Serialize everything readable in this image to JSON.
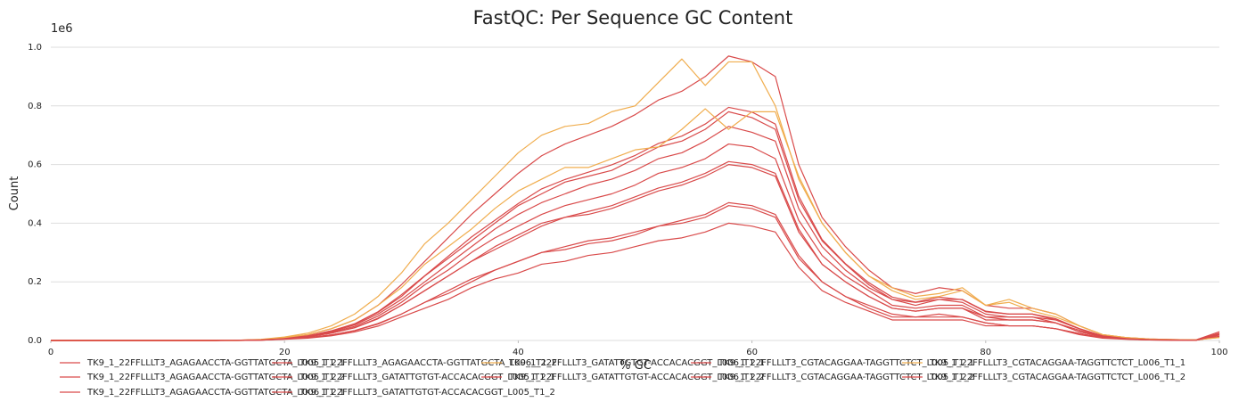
{
  "chart_data": {
    "type": "line",
    "title": "FastQC: Per Sequence GC Content",
    "y_offset_label": "1e6",
    "xlabel": "% GC",
    "ylabel": "Count",
    "xlim": [
      0,
      100
    ],
    "ylim": [
      0,
      1.0
    ],
    "xticks": [
      0,
      20,
      40,
      60,
      80,
      100
    ],
    "yticks": [
      {
        "value": 0,
        "label": "0.0"
      },
      0.2,
      0.4,
      0.6,
      0.8,
      {
        "value": 1,
        "label": "1.0"
      }
    ],
    "grid": true,
    "legend": "bottom",
    "x": [
      0,
      2,
      4,
      6,
      8,
      10,
      12,
      14,
      16,
      18,
      20,
      22,
      24,
      26,
      28,
      30,
      32,
      34,
      36,
      38,
      40,
      42,
      44,
      46,
      48,
      50,
      52,
      54,
      56,
      58,
      60,
      62,
      64,
      66,
      68,
      70,
      72,
      74,
      76,
      78,
      80,
      82,
      84,
      86,
      88,
      90,
      92,
      94,
      96,
      98,
      100
    ],
    "series": [
      {
        "name": "TK9_1_22FFLLLT3_AGAGAACCTA-GGTTATGCTA_L005_T1_1",
        "color": "#d94a4a",
        "values": [
          0,
          0,
          0,
          0,
          0,
          0,
          0,
          0,
          0.001,
          0.002,
          0.008,
          0.016,
          0.033,
          0.057,
          0.098,
          0.156,
          0.221,
          0.287,
          0.353,
          0.41,
          0.467,
          0.517,
          0.549,
          0.574,
          0.599,
          0.631,
          0.672,
          0.697,
          0.738,
          0.795,
          0.779,
          0.738,
          0.492,
          0.344,
          0.262,
          0.197,
          0.148,
          0.131,
          0.148,
          0.139,
          0.098,
          0.09,
          0.09,
          0.074,
          0.041,
          0.016,
          0.008,
          0.004,
          0.002,
          0.002,
          0.025
        ]
      },
      {
        "name": "TK9_1_22FFLLLT3_AGAGAACCTA-GGTTATGCTA_L005_T1_2",
        "color": "#d94a4a",
        "values": [
          0,
          0,
          0,
          0,
          0,
          0,
          0,
          0,
          0.001,
          0.002,
          0.006,
          0.013,
          0.025,
          0.044,
          0.076,
          0.12,
          0.17,
          0.22,
          0.27,
          0.32,
          0.36,
          0.4,
          0.42,
          0.44,
          0.46,
          0.49,
          0.52,
          0.54,
          0.57,
          0.61,
          0.6,
          0.57,
          0.38,
          0.26,
          0.2,
          0.15,
          0.11,
          0.1,
          0.11,
          0.11,
          0.08,
          0.07,
          0.07,
          0.06,
          0.03,
          0.013,
          0.006,
          0.003,
          0.002,
          0.001,
          0.019
        ]
      },
      {
        "name": "TK9_1_22FFLLLT3_AGAGAACCTA-GGTTATGCTA_L006_T1_1",
        "color": "#d94a4a",
        "values": [
          0,
          0,
          0,
          0,
          0,
          0,
          0,
          0,
          0.001,
          0.003,
          0.01,
          0.02,
          0.04,
          0.07,
          0.12,
          0.19,
          0.27,
          0.35,
          0.43,
          0.5,
          0.57,
          0.63,
          0.67,
          0.7,
          0.73,
          0.77,
          0.82,
          0.85,
          0.9,
          0.97,
          0.95,
          0.9,
          0.6,
          0.42,
          0.32,
          0.24,
          0.18,
          0.16,
          0.18,
          0.17,
          0.12,
          0.11,
          0.11,
          0.09,
          0.05,
          0.02,
          0.01,
          0.005,
          0.003,
          0.002,
          0.03
        ]
      },
      {
        "name": "TK9_1_22FFLLLT3_AGAGAACCTA-GGTTATGCTA_L006_T1_2",
        "color": "#d94a4a",
        "values": [
          0,
          0,
          0,
          0,
          0,
          0,
          0,
          0,
          0.001,
          0.002,
          0.008,
          0.015,
          0.03,
          0.053,
          0.09,
          0.14,
          0.2,
          0.26,
          0.32,
          0.38,
          0.43,
          0.47,
          0.5,
          0.53,
          0.55,
          0.58,
          0.62,
          0.64,
          0.68,
          0.73,
          0.71,
          0.68,
          0.45,
          0.32,
          0.24,
          0.18,
          0.14,
          0.12,
          0.14,
          0.13,
          0.09,
          0.08,
          0.08,
          0.07,
          0.04,
          0.015,
          0.008,
          0.004,
          0.002,
          0.002,
          0.023
        ]
      },
      {
        "name": "TK9_1_22FFLLLT3_GATATTGTGT-ACCACACGGT_L005_T1_1",
        "color": "#d94a4a",
        "values": [
          0,
          0,
          0,
          0,
          0,
          0,
          0,
          0,
          0,
          0.001,
          0.005,
          0.01,
          0.019,
          0.034,
          0.058,
          0.09,
          0.13,
          0.17,
          0.21,
          0.24,
          0.27,
          0.3,
          0.32,
          0.34,
          0.35,
          0.37,
          0.39,
          0.41,
          0.43,
          0.47,
          0.46,
          0.43,
          0.29,
          0.2,
          0.15,
          0.12,
          0.09,
          0.08,
          0.09,
          0.08,
          0.06,
          0.05,
          0.05,
          0.04,
          0.024,
          0.01,
          0.005,
          0.002,
          0.001,
          0.001,
          0.014
        ]
      },
      {
        "name": "TK9_1_22FFLLLT3_GATATTGTGT-ACCACACGGT_L005_T1_2",
        "color": "#d94a4a",
        "values": [
          0,
          0,
          0,
          0,
          0,
          0,
          0,
          0,
          0,
          0.001,
          0.004,
          0.008,
          0.016,
          0.029,
          0.049,
          0.08,
          0.11,
          0.14,
          0.18,
          0.21,
          0.23,
          0.26,
          0.27,
          0.29,
          0.3,
          0.32,
          0.34,
          0.35,
          0.37,
          0.4,
          0.39,
          0.37,
          0.25,
          0.17,
          0.13,
          0.1,
          0.07,
          0.07,
          0.07,
          0.07,
          0.05,
          0.05,
          0.05,
          0.04,
          0.02,
          0.008,
          0.004,
          0.002,
          0.001,
          0.001,
          0.012
        ]
      },
      {
        "name": "TK9_1_22FFLLLT3_GATATTGTGT-ACCACACGGT_L006_T1_1",
        "color": "#f0ad4e",
        "values": [
          0,
          0,
          0,
          0,
          0,
          0,
          0,
          0,
          0.001,
          0.004,
          0.012,
          0.025,
          0.05,
          0.09,
          0.15,
          0.23,
          0.33,
          0.4,
          0.48,
          0.56,
          0.64,
          0.7,
          0.73,
          0.74,
          0.78,
          0.8,
          0.88,
          0.96,
          0.87,
          0.95,
          0.95,
          0.8,
          0.55,
          0.4,
          0.3,
          0.22,
          0.18,
          0.15,
          0.16,
          0.18,
          0.12,
          0.14,
          0.11,
          0.09,
          0.05,
          0.02,
          0.01,
          0.005,
          0.003,
          0.002,
          0.01
        ]
      },
      {
        "name": "TK9_1_22FFLLLT3_GATATTGTGT-ACCACACGGT_L006_T1_2",
        "color": "#d94a4a",
        "values": [
          0,
          0,
          0,
          0,
          0,
          0,
          0,
          0,
          0.001,
          0.002,
          0.007,
          0.014,
          0.028,
          0.048,
          0.083,
          0.13,
          0.19,
          0.24,
          0.3,
          0.35,
          0.39,
          0.43,
          0.46,
          0.48,
          0.5,
          0.53,
          0.57,
          0.59,
          0.62,
          0.67,
          0.66,
          0.62,
          0.41,
          0.29,
          0.22,
          0.17,
          0.12,
          0.11,
          0.12,
          0.12,
          0.08,
          0.08,
          0.08,
          0.06,
          0.035,
          0.014,
          0.007,
          0.003,
          0.002,
          0.001,
          0.021
        ]
      },
      {
        "name": "TK9_1_22FFLLLT3_CGTACAGGAA-TAGGTTCTCT_L005_T1_1",
        "color": "#d94a4a",
        "values": [
          0,
          0,
          0,
          0,
          0,
          0,
          0,
          0,
          0.001,
          0.002,
          0.008,
          0.016,
          0.032,
          0.056,
          0.096,
          0.15,
          0.22,
          0.28,
          0.34,
          0.4,
          0.46,
          0.5,
          0.54,
          0.56,
          0.58,
          0.62,
          0.66,
          0.68,
          0.72,
          0.78,
          0.76,
          0.72,
          0.48,
          0.34,
          0.26,
          0.19,
          0.14,
          0.13,
          0.14,
          0.14,
          0.1,
          0.09,
          0.09,
          0.07,
          0.04,
          0.016,
          0.008,
          0.004,
          0.002,
          0.002,
          0.024
        ]
      },
      {
        "name": "TK9_1_22FFLLLT3_CGTACAGGAA-TAGGTTCTCT_L005_T1_2",
        "color": "#d94a4a",
        "values": [
          0,
          0,
          0,
          0,
          0,
          0,
          0,
          0,
          0,
          0.001,
          0.005,
          0.009,
          0.019,
          0.033,
          0.056,
          0.09,
          0.13,
          0.16,
          0.2,
          0.24,
          0.27,
          0.3,
          0.31,
          0.33,
          0.34,
          0.36,
          0.39,
          0.4,
          0.42,
          0.46,
          0.45,
          0.42,
          0.28,
          0.2,
          0.15,
          0.11,
          0.08,
          0.08,
          0.08,
          0.08,
          0.06,
          0.05,
          0.05,
          0.04,
          0.024,
          0.009,
          0.005,
          0.002,
          0.001,
          0.001,
          0.014
        ]
      },
      {
        "name": "TK9_1_22FFLLLT3_CGTACAGGAA-TAGGTTCTCT_L006_T1_1",
        "color": "#f0ad4e",
        "values": [
          0,
          0,
          0,
          0,
          0,
          0,
          0,
          0,
          0.001,
          0.003,
          0.01,
          0.02,
          0.04,
          0.07,
          0.12,
          0.18,
          0.26,
          0.32,
          0.38,
          0.45,
          0.51,
          0.55,
          0.59,
          0.59,
          0.62,
          0.65,
          0.66,
          0.72,
          0.79,
          0.72,
          0.78,
          0.78,
          0.56,
          0.4,
          0.3,
          0.22,
          0.17,
          0.14,
          0.15,
          0.17,
          0.12,
          0.13,
          0.1,
          0.08,
          0.05,
          0.02,
          0.01,
          0.005,
          0.003,
          0.002,
          0.01
        ]
      },
      {
        "name": "TK9_1_22FFLLLT3_CGTACAGGAA-TAGGTTCTCT_L006_T1_2",
        "color": "#d94a4a",
        "values": [
          0,
          0,
          0,
          0,
          0,
          0,
          0,
          0,
          0.001,
          0.002,
          0.006,
          0.012,
          0.025,
          0.043,
          0.074,
          0.12,
          0.17,
          0.22,
          0.27,
          0.31,
          0.35,
          0.39,
          0.42,
          0.43,
          0.45,
          0.48,
          0.51,
          0.53,
          0.56,
          0.6,
          0.59,
          0.56,
          0.37,
          0.26,
          0.2,
          0.15,
          0.11,
          0.1,
          0.11,
          0.11,
          0.07,
          0.07,
          0.07,
          0.06,
          0.03,
          0.012,
          0.006,
          0.003,
          0.002,
          0.001,
          0.019
        ]
      }
    ]
  }
}
